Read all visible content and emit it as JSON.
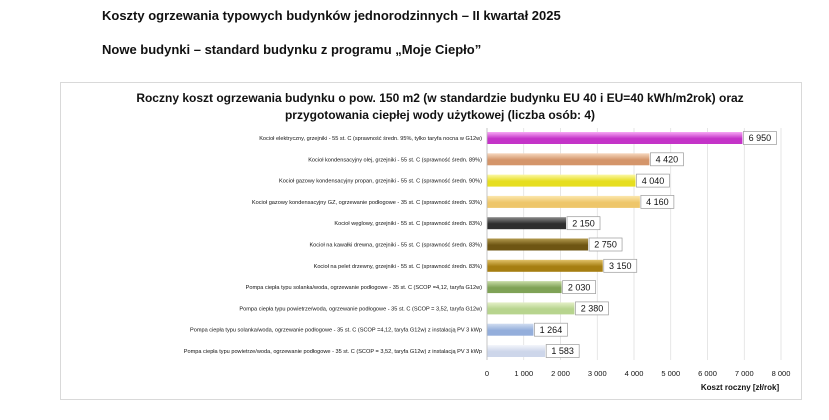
{
  "page": {
    "heading": "Koszty ogrzewania typowych budynków jednorodzinnych – II kwartał 2025",
    "subheading": "Nowe budynki – standard budynku z programu „Moje Ciepło”"
  },
  "chart_data": {
    "type": "bar",
    "orientation": "horizontal",
    "title_line1": "Roczny koszt ogrzewania budynku o pow. 150 m2 (w standardzie budynku EU 40 i EU=40 kWh/m2rok) oraz",
    "title_line2": "przygotowania ciepłej wody użytkowej (liczba osób: 4)",
    "xlabel": "Koszt roczny [zł/rok]",
    "xlim": [
      0,
      8000
    ],
    "xticks": [
      0,
      1000,
      2000,
      3000,
      4000,
      5000,
      6000,
      7000,
      8000
    ],
    "xtick_labels": [
      "0",
      "1 000",
      "2 000",
      "3 000",
      "4 000",
      "5 000",
      "6 000",
      "7 000",
      "8 000"
    ],
    "grid": true,
    "categories": [
      "Kocioł elektryczny,  grzejniki - 55 st. C  (sprawność średn. 95%, tylko taryfa nocna w G12w)",
      "Kocioł kondensacyjny olej,  grzejniki - 55 st. C (sprawność średn. 89%)",
      "Kocioł gazowy kondensacyjny propan, grzejniki - 55 st. C (sprawność średn. 90%)",
      "Kocioł gazowy kondensacyjny GZ, ogrzewanie podłogowe - 35 st. C (sprawność średn. 93%)",
      "Kocioł węglowy,  grzejniki - 55 st. C  (sprawność średn. 83%)",
      "Kocioł na kawałki drewna, grzejniki - 55 st. C (sprawność średn. 83%)",
      "Kocioł na pelet drzewny, grzejniki - 55 st. C (sprawność średn. 83%)",
      "Pompa ciepła typu solanka/woda, ogrzewanie podłogowe - 35 st. C (SCOP =4,12, taryfa G12w)",
      "Pompa ciepła typu powietrze/woda, ogrzewanie podłogowe - 35 st. C (SCOP = 3,52, taryfa G12w)",
      "Pompa ciepła typu solanka/woda, ogrzewanie podłogowe - 35 st. C (SCOP =4,12, taryfa G12w) z instalacją PV 3 kWp",
      "Pompa ciepła typu powietrze/woda, ogrzewanie podłogowe - 35 st. C (SCOP = 3,52, taryfa G12w) z instalacją PV 3 kWp"
    ],
    "values": [
      6950,
      4420,
      4040,
      4160,
      2150,
      2750,
      3150,
      2030,
      2380,
      1264,
      1583
    ],
    "value_labels": [
      "6 950",
      "4 420",
      "4 040",
      "4 160",
      "2 150",
      "2 750",
      "3 150",
      "2 030",
      "2 380",
      "1 264",
      "1 583"
    ],
    "colors": [
      [
        "#f7a8f5",
        "#c433c8"
      ],
      [
        "#f6d8c0",
        "#d4956a"
      ],
      [
        "#fbf7a6",
        "#e6de1f"
      ],
      [
        "#fbe7ad",
        "#eec66a"
      ],
      [
        "#8a8a8a",
        "#2e2e2e"
      ],
      [
        "#b39a4e",
        "#6e5513"
      ],
      [
        "#e2c26a",
        "#a67e12"
      ],
      [
        "#c8dca8",
        "#7fa256"
      ],
      [
        "#e4f0c8",
        "#b7d48e"
      ],
      [
        "#d0dcf0",
        "#94aedb"
      ],
      [
        "#f4f6fb",
        "#cdd6ea"
      ]
    ]
  }
}
